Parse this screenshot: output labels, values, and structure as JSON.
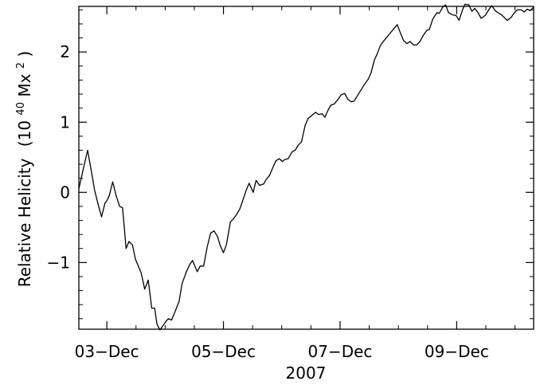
{
  "chart_data": {
    "type": "line",
    "xlabel": "2007",
    "ylabel_main": "Relative Helicity",
    "ylabel_unit_open": "(10",
    "ylabel_unit_exp": "40",
    "ylabel_unit_mid": "Mx",
    "ylabel_unit_sup": "2",
    "ylabel_unit_close": ")",
    "x_unit": "days from 2007-12-03 00:00 UT",
    "xlim": [
      -0.48,
      7.32
    ],
    "ylim": [
      -1.95,
      2.65
    ],
    "x_ticks": [
      {
        "x": 0,
        "label": "03−Dec"
      },
      {
        "x": 2,
        "label": "05−Dec"
      },
      {
        "x": 4,
        "label": "07−Dec"
      },
      {
        "x": 6,
        "label": "09−Dec"
      }
    ],
    "y_ticks": [
      {
        "y": -1,
        "label": "−1"
      },
      {
        "y": 0,
        "label": "0"
      },
      {
        "y": 1,
        "label": "1"
      },
      {
        "y": 2,
        "label": "2"
      }
    ],
    "grid": false,
    "series": [
      {
        "color": "#000000",
        "x": [
          -0.48,
          -0.4,
          -0.33,
          -0.27,
          -0.21,
          -0.15,
          -0.09,
          -0.03,
          0.0,
          0.04,
          0.1,
          0.16,
          0.22,
          0.27,
          0.33,
          0.38,
          0.44,
          0.49,
          0.55,
          0.59,
          0.65,
          0.71,
          0.77,
          0.82,
          0.86,
          0.91,
          0.98,
          1.03,
          1.06,
          1.11,
          1.16,
          1.24,
          1.29,
          1.36,
          1.42,
          1.47,
          1.55,
          1.6,
          1.66,
          1.72,
          1.78,
          1.84,
          1.9,
          1.94,
          2.0,
          2.05,
          2.12,
          2.17,
          2.22,
          2.28,
          2.33,
          2.39,
          2.44,
          2.51,
          2.56,
          2.62,
          2.69,
          2.73,
          2.79,
          2.84,
          2.9,
          2.96,
          3.01,
          3.06,
          3.11,
          3.18,
          3.23,
          3.28,
          3.34,
          3.4,
          3.45,
          3.52,
          3.58,
          3.63,
          3.69,
          3.74,
          3.8,
          3.84,
          3.9,
          3.96,
          4.02,
          4.08,
          4.13,
          4.19,
          4.24,
          4.3,
          4.36,
          4.41,
          4.48,
          4.53,
          4.59,
          4.63,
          4.69,
          4.76,
          4.81,
          4.86,
          4.92,
          4.98,
          5.04,
          5.09,
          5.15,
          5.2,
          5.26,
          5.31,
          5.37,
          5.43,
          5.49,
          5.53,
          5.59,
          5.66,
          5.7,
          5.76,
          5.81,
          5.86,
          5.93,
          5.99,
          6.04,
          6.1,
          6.14,
          6.21,
          6.26,
          6.31,
          6.36,
          6.42,
          6.49,
          6.55,
          6.6,
          6.66,
          6.71,
          6.77,
          6.83,
          6.87,
          6.94,
          6.99,
          7.04,
          7.11,
          7.16,
          7.21,
          7.26,
          7.32
        ],
        "y": [
          0.05,
          0.35,
          0.6,
          0.32,
          0.03,
          -0.17,
          -0.35,
          -0.15,
          -0.12,
          -0.05,
          0.15,
          -0.05,
          -0.2,
          -0.22,
          -0.8,
          -0.7,
          -0.75,
          -0.95,
          -1.07,
          -1.15,
          -1.38,
          -1.25,
          -1.65,
          -1.65,
          -1.88,
          -1.96,
          -1.88,
          -1.82,
          -1.8,
          -1.82,
          -1.72,
          -1.55,
          -1.3,
          -1.14,
          -1.03,
          -0.97,
          -1.13,
          -1.05,
          -1.05,
          -0.78,
          -0.58,
          -0.55,
          -0.63,
          -0.75,
          -0.86,
          -0.75,
          -0.42,
          -0.38,
          -0.32,
          -0.24,
          -0.12,
          0.03,
          0.13,
          0.0,
          0.17,
          0.1,
          0.12,
          0.18,
          0.24,
          0.34,
          0.45,
          0.48,
          0.44,
          0.47,
          0.48,
          0.58,
          0.6,
          0.67,
          0.72,
          0.95,
          1.05,
          1.1,
          1.14,
          1.11,
          1.12,
          1.07,
          1.18,
          1.24,
          1.26,
          1.32,
          1.39,
          1.41,
          1.33,
          1.29,
          1.3,
          1.38,
          1.46,
          1.53,
          1.61,
          1.7,
          1.89,
          1.96,
          2.09,
          2.17,
          2.22,
          2.27,
          2.33,
          2.39,
          2.26,
          2.16,
          2.12,
          2.15,
          2.1,
          2.1,
          2.15,
          2.24,
          2.31,
          2.32,
          2.47,
          2.56,
          2.55,
          2.64,
          2.67,
          2.56,
          2.53,
          2.52,
          2.45,
          2.6,
          2.68,
          2.67,
          2.58,
          2.62,
          2.57,
          2.48,
          2.52,
          2.6,
          2.66,
          2.59,
          2.56,
          2.53,
          2.48,
          2.45,
          2.5,
          2.56,
          2.6,
          2.6,
          2.57,
          2.61,
          2.59,
          2.64
        ]
      }
    ]
  }
}
